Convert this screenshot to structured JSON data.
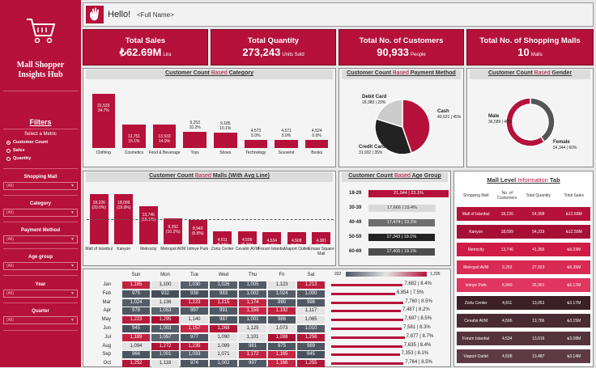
{
  "app": {
    "title": "Mall Shopper Insights Hub",
    "greeting": "Hello!",
    "user_placeholder": "<Full Name>"
  },
  "kpis": [
    {
      "label": "Total Sales",
      "value": "₺62.69M",
      "unit": "Lira"
    },
    {
      "label": "Total Quantity",
      "value": "273,243",
      "unit": "Units Sold"
    },
    {
      "label": "Total No. of Customers",
      "value": "90,933",
      "unit": "People"
    },
    {
      "label": "Total No. of Shopping Malls",
      "value": "10",
      "unit": "Malls"
    }
  ],
  "filters": {
    "title": "Filters",
    "metric_label": "Select a Metric",
    "metrics": [
      {
        "label": "Customer Count",
        "selected": true
      },
      {
        "label": "Sales",
        "selected": false
      },
      {
        "label": "Quantity",
        "selected": false
      }
    ],
    "dropdowns": [
      {
        "label": "Shopping Mall",
        "value": "(All)"
      },
      {
        "label": "Category",
        "value": "(All)"
      },
      {
        "label": "Payment Method",
        "value": "(All)"
      },
      {
        "label": "Age group",
        "value": "(All)"
      },
      {
        "label": "Year",
        "value": "(All)"
      },
      {
        "label": "Quarter",
        "value": "(All)"
      }
    ]
  },
  "titles": {
    "pre": "Customer Count",
    "based": "Based",
    "category": "Category",
    "payment": "Payment Method",
    "gender": "Gender",
    "malls": "Malls (With Avg Line)",
    "age": "Age Group",
    "mall_tab_pre": "Mall Level",
    "mall_tab_hl": "Information",
    "mall_tab_post": "Tab"
  },
  "chart_data": [
    {
      "type": "bar",
      "id": "category",
      "categories": [
        "Clothing",
        "Cosmetics",
        "Food & Beverage",
        "Toys",
        "Shoes",
        "Technology",
        "Souvenir",
        "Books"
      ],
      "values": [
        31533,
        13751,
        13533,
        9253,
        9185,
        4573,
        4571,
        4524
      ],
      "labels": [
        "31,533\n34.7%",
        "13,751\n15.1%",
        "13,533\n14.9%",
        "9,253\n10.2%",
        "9,185\n10.1%",
        "4,573\n5.0%",
        "4,571\n5.0%",
        "4,524\n5.0%"
      ],
      "ylim": [
        0,
        33000
      ]
    },
    {
      "type": "pie",
      "id": "payment",
      "categories": [
        "Cash",
        "Credit Card",
        "Debit Card"
      ],
      "values": [
        40621,
        31932,
        18380
      ],
      "labels": [
        "Cash\n40,621 | 45%",
        "Credit Card\n31,932 | 35%",
        "Debit Card\n18,380 | 20%"
      ],
      "colors": [
        "#b5113a",
        "#222222",
        "#cccccc"
      ]
    },
    {
      "type": "pie",
      "id": "gender",
      "categories": [
        "Male",
        "Female"
      ],
      "values": [
        36589,
        54344
      ],
      "labels": [
        "Male\n36,589 | 40%",
        "Female\n54,344 | 60%"
      ],
      "colors": [
        "#555555",
        "#b5113a"
      ]
    },
    {
      "type": "bar",
      "id": "malls",
      "categories": [
        "Mall of Istanbul",
        "Kanyon",
        "Metrocity",
        "Metropol AVM",
        "Istinye Park",
        "Zorlu Center",
        "Cevahir AVM",
        "Forum Istanbul",
        "Viaport Outlet",
        "Emaar Square Mall"
      ],
      "values": [
        18226,
        18099,
        13746,
        9292,
        8940,
        4611,
        4596,
        4534,
        4508,
        4381
      ],
      "labels": [
        "18,226\n(20.0%)",
        "18,099\n(19.9%)",
        "13,746\n(15.1%)",
        "9,292\n(10.2%)",
        "8,940\n(9.8%)",
        "4,611\n(5.1%)",
        "4,596\n(5.1%)",
        "4,534\n(5.0%)",
        "4,508\n(5.0%)",
        "4,381\n(4.8%)"
      ],
      "avg_line": 9093,
      "ylim": [
        0,
        20000
      ]
    },
    {
      "type": "bar",
      "id": "age",
      "categories": [
        "18-29",
        "30-39",
        "40-49",
        "50-59",
        "60-69"
      ],
      "values": [
        21044,
        17666,
        17474,
        17343,
        17406
      ],
      "labels": [
        "21,044 | 23.1%",
        "17,666 | 19.4%",
        "17,474 | 19.2%",
        "17,343 | 19.1%",
        "17,406 | 19.1%"
      ],
      "colors": [
        "#b5113a",
        "#d9d9d9",
        "#6e6e6e",
        "#222222",
        "#4d4d4d"
      ]
    },
    {
      "type": "heatmap",
      "id": "month_day",
      "columns": [
        "Sun",
        "Mon",
        "Tue",
        "Wed",
        "Thu",
        "Fri",
        "Sat"
      ],
      "rows": [
        "Jan",
        "Feb",
        "Mar",
        "Apr",
        "May",
        "Jun",
        "Jul",
        "Aug",
        "Sep",
        "Oct"
      ],
      "values": [
        [
          1185,
          1100,
          1030,
          1026,
          1005,
          1123,
          1213
        ],
        [
          975,
          932,
          938,
          983,
          1002,
          1024,
          1000
        ],
        [
          1024,
          1136,
          1223,
          1215,
          1174,
          990,
          998
        ],
        [
          978,
          1053,
          997,
          991,
          1159,
          1192,
          1117
        ],
        [
          1223,
          1295,
          1140,
          987,
          1001,
          986,
          1065
        ],
        [
          945,
          1003,
          1157,
          1268,
          1125,
          1073,
          1010
        ],
        [
          1189,
          1057,
          977,
          1090,
          1101,
          1288,
          1256
        ],
        [
          1094,
          1272,
          1235,
          1089,
          981,
          975,
          989
        ],
        [
          966,
          1001,
          1033,
          1071,
          1172,
          1165,
          945
        ],
        [
          1252,
          1118,
          974,
          1002,
          997,
          1166,
          1255
        ]
      ],
      "range": [
        932,
        1295
      ],
      "range_labels": [
        "932",
        "1,295"
      ]
    },
    {
      "type": "bar",
      "id": "month_totals",
      "categories": [
        "Jan",
        "Feb",
        "Mar",
        "Apr",
        "May",
        "Jun",
        "Jul",
        "Aug",
        "Sep",
        "Oct"
      ],
      "values": [
        7682,
        6854,
        7760,
        7487,
        7697,
        7581,
        7877,
        7635,
        7353,
        7764
      ],
      "labels": [
        "7,682 | 8.4%",
        "6,854 | 7.5%",
        "7,760 | 8.5%",
        "7,487 | 8.2%",
        "7,697 | 8.5%",
        "7,581 | 8.3%",
        "7,877 | 8.7%",
        "7,635 | 8.4%",
        "7,353 | 8.1%",
        "7,764 | 8.5%"
      ],
      "xlim": [
        0,
        8000
      ]
    }
  ],
  "mall_table": {
    "headers": [
      "Shopping Mall",
      "No. of Customers",
      "Total Quantity",
      "Total Sales"
    ],
    "rows": [
      {
        "mall": "Mall of Istanbul",
        "customers": "18,226",
        "quantity": "54,998",
        "sales": "₺12.69M",
        "color": "#b5113a"
      },
      {
        "mall": "Kanyon",
        "customers": "18,099",
        "quantity": "54,319",
        "sales": "₺12.50M",
        "color": "#a80f36"
      },
      {
        "mall": "Metrocity",
        "customers": "13,746",
        "quantity": "41,365",
        "sales": "₺9.33M",
        "color": "#cf1b45"
      },
      {
        "mall": "Metropol AVM",
        "customers": "9,292",
        "quantity": "27,923",
        "sales": "₺6.35M",
        "color": "#d92a53"
      },
      {
        "mall": "Istinye Park",
        "customers": "8,940",
        "quantity": "26,951",
        "sales": "₺6.17M",
        "color": "#e0355f"
      },
      {
        "mall": "Zorlu Center",
        "customers": "4,611",
        "quantity": "13,051",
        "sales": "₺3.17M",
        "color": "#3d1f27"
      },
      {
        "mall": "Cevahir AVM",
        "customers": "4,596",
        "quantity": "13,786",
        "sales": "₺3.15M",
        "color": "#4a2a33"
      },
      {
        "mall": "Forum Istanbul",
        "customers": "4,534",
        "quantity": "13,616",
        "sales": "₺3.08M",
        "color": "#55333c"
      },
      {
        "mall": "Viaport Outlet",
        "customers": "4,508",
        "quantity": "13,487",
        "sales": "₺3.14M",
        "color": "#5e3b44"
      }
    ]
  }
}
